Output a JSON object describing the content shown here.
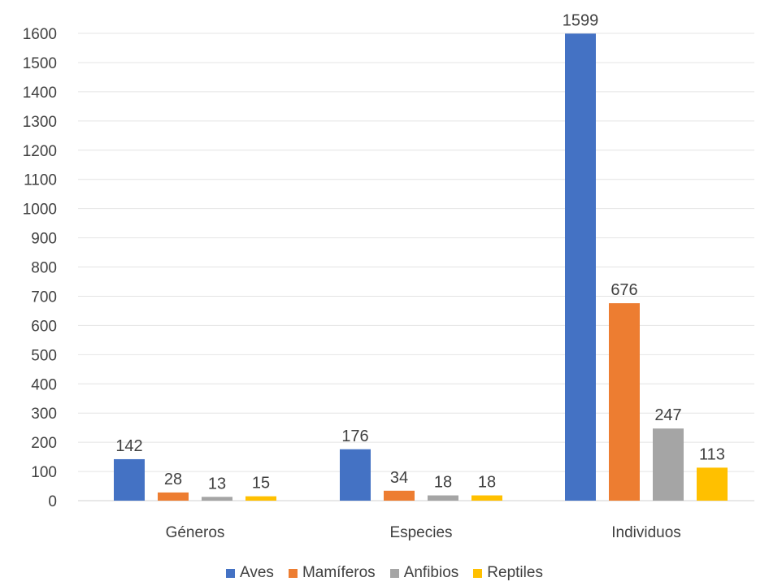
{
  "chart_data": {
    "type": "bar",
    "categories": [
      "Géneros",
      "Especies",
      "Individuos"
    ],
    "series": [
      {
        "name": "Aves",
        "values": [
          142,
          176,
          1599
        ],
        "color": "#4472C4"
      },
      {
        "name": "Mamíferos",
        "values": [
          28,
          34,
          676
        ],
        "color": "#ED7D31"
      },
      {
        "name": "Anfibios",
        "values": [
          13,
          18,
          247
        ],
        "color": "#A5A5A5"
      },
      {
        "name": "Reptiles",
        "values": [
          15,
          18,
          113
        ],
        "color": "#FFC000"
      }
    ],
    "ylim": [
      0,
      1600
    ],
    "yticks": [
      0,
      100,
      200,
      300,
      400,
      500,
      600,
      700,
      800,
      900,
      1000,
      1100,
      1200,
      1300,
      1400,
      1500,
      1600
    ],
    "grid": true,
    "legend_position": "bottom",
    "data_labels": true
  }
}
